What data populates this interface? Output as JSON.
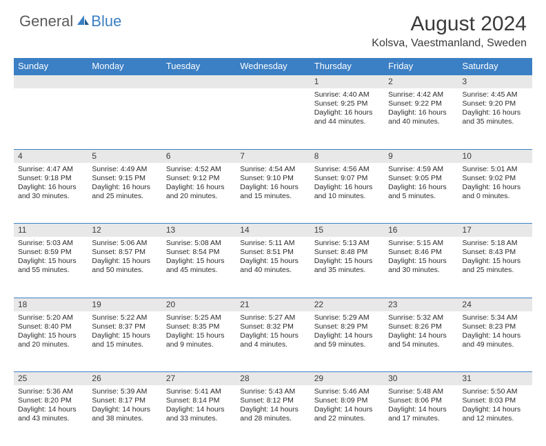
{
  "logo": {
    "general": "General",
    "blue": "Blue"
  },
  "title": "August 2024",
  "location": "Kolsva, Vaestmanland, Sweden",
  "colors": {
    "header_bg": "#3b7fc4",
    "day_bg": "#e8e8e8"
  },
  "weekdays": [
    "Sunday",
    "Monday",
    "Tuesday",
    "Wednesday",
    "Thursday",
    "Friday",
    "Saturday"
  ],
  "weeks": [
    {
      "nums": [
        "",
        "",
        "",
        "",
        "1",
        "2",
        "3"
      ],
      "cells": [
        null,
        null,
        null,
        null,
        {
          "sr": "Sunrise: 4:40 AM",
          "ss": "Sunset: 9:25 PM",
          "dl": "Daylight: 16 hours and 44 minutes."
        },
        {
          "sr": "Sunrise: 4:42 AM",
          "ss": "Sunset: 9:22 PM",
          "dl": "Daylight: 16 hours and 40 minutes."
        },
        {
          "sr": "Sunrise: 4:45 AM",
          "ss": "Sunset: 9:20 PM",
          "dl": "Daylight: 16 hours and 35 minutes."
        }
      ]
    },
    {
      "nums": [
        "4",
        "5",
        "6",
        "7",
        "8",
        "9",
        "10"
      ],
      "cells": [
        {
          "sr": "Sunrise: 4:47 AM",
          "ss": "Sunset: 9:18 PM",
          "dl": "Daylight: 16 hours and 30 minutes."
        },
        {
          "sr": "Sunrise: 4:49 AM",
          "ss": "Sunset: 9:15 PM",
          "dl": "Daylight: 16 hours and 25 minutes."
        },
        {
          "sr": "Sunrise: 4:52 AM",
          "ss": "Sunset: 9:12 PM",
          "dl": "Daylight: 16 hours and 20 minutes."
        },
        {
          "sr": "Sunrise: 4:54 AM",
          "ss": "Sunset: 9:10 PM",
          "dl": "Daylight: 16 hours and 15 minutes."
        },
        {
          "sr": "Sunrise: 4:56 AM",
          "ss": "Sunset: 9:07 PM",
          "dl": "Daylight: 16 hours and 10 minutes."
        },
        {
          "sr": "Sunrise: 4:59 AM",
          "ss": "Sunset: 9:05 PM",
          "dl": "Daylight: 16 hours and 5 minutes."
        },
        {
          "sr": "Sunrise: 5:01 AM",
          "ss": "Sunset: 9:02 PM",
          "dl": "Daylight: 16 hours and 0 minutes."
        }
      ]
    },
    {
      "nums": [
        "11",
        "12",
        "13",
        "14",
        "15",
        "16",
        "17"
      ],
      "cells": [
        {
          "sr": "Sunrise: 5:03 AM",
          "ss": "Sunset: 8:59 PM",
          "dl": "Daylight: 15 hours and 55 minutes."
        },
        {
          "sr": "Sunrise: 5:06 AM",
          "ss": "Sunset: 8:57 PM",
          "dl": "Daylight: 15 hours and 50 minutes."
        },
        {
          "sr": "Sunrise: 5:08 AM",
          "ss": "Sunset: 8:54 PM",
          "dl": "Daylight: 15 hours and 45 minutes."
        },
        {
          "sr": "Sunrise: 5:11 AM",
          "ss": "Sunset: 8:51 PM",
          "dl": "Daylight: 15 hours and 40 minutes."
        },
        {
          "sr": "Sunrise: 5:13 AM",
          "ss": "Sunset: 8:48 PM",
          "dl": "Daylight: 15 hours and 35 minutes."
        },
        {
          "sr": "Sunrise: 5:15 AM",
          "ss": "Sunset: 8:46 PM",
          "dl": "Daylight: 15 hours and 30 minutes."
        },
        {
          "sr": "Sunrise: 5:18 AM",
          "ss": "Sunset: 8:43 PM",
          "dl": "Daylight: 15 hours and 25 minutes."
        }
      ]
    },
    {
      "nums": [
        "18",
        "19",
        "20",
        "21",
        "22",
        "23",
        "24"
      ],
      "cells": [
        {
          "sr": "Sunrise: 5:20 AM",
          "ss": "Sunset: 8:40 PM",
          "dl": "Daylight: 15 hours and 20 minutes."
        },
        {
          "sr": "Sunrise: 5:22 AM",
          "ss": "Sunset: 8:37 PM",
          "dl": "Daylight: 15 hours and 15 minutes."
        },
        {
          "sr": "Sunrise: 5:25 AM",
          "ss": "Sunset: 8:35 PM",
          "dl": "Daylight: 15 hours and 9 minutes."
        },
        {
          "sr": "Sunrise: 5:27 AM",
          "ss": "Sunset: 8:32 PM",
          "dl": "Daylight: 15 hours and 4 minutes."
        },
        {
          "sr": "Sunrise: 5:29 AM",
          "ss": "Sunset: 8:29 PM",
          "dl": "Daylight: 14 hours and 59 minutes."
        },
        {
          "sr": "Sunrise: 5:32 AM",
          "ss": "Sunset: 8:26 PM",
          "dl": "Daylight: 14 hours and 54 minutes."
        },
        {
          "sr": "Sunrise: 5:34 AM",
          "ss": "Sunset: 8:23 PM",
          "dl": "Daylight: 14 hours and 49 minutes."
        }
      ]
    },
    {
      "nums": [
        "25",
        "26",
        "27",
        "28",
        "29",
        "30",
        "31"
      ],
      "cells": [
        {
          "sr": "Sunrise: 5:36 AM",
          "ss": "Sunset: 8:20 PM",
          "dl": "Daylight: 14 hours and 43 minutes."
        },
        {
          "sr": "Sunrise: 5:39 AM",
          "ss": "Sunset: 8:17 PM",
          "dl": "Daylight: 14 hours and 38 minutes."
        },
        {
          "sr": "Sunrise: 5:41 AM",
          "ss": "Sunset: 8:14 PM",
          "dl": "Daylight: 14 hours and 33 minutes."
        },
        {
          "sr": "Sunrise: 5:43 AM",
          "ss": "Sunset: 8:12 PM",
          "dl": "Daylight: 14 hours and 28 minutes."
        },
        {
          "sr": "Sunrise: 5:46 AM",
          "ss": "Sunset: 8:09 PM",
          "dl": "Daylight: 14 hours and 22 minutes."
        },
        {
          "sr": "Sunrise: 5:48 AM",
          "ss": "Sunset: 8:06 PM",
          "dl": "Daylight: 14 hours and 17 minutes."
        },
        {
          "sr": "Sunrise: 5:50 AM",
          "ss": "Sunset: 8:03 PM",
          "dl": "Daylight: 14 hours and 12 minutes."
        }
      ]
    }
  ]
}
